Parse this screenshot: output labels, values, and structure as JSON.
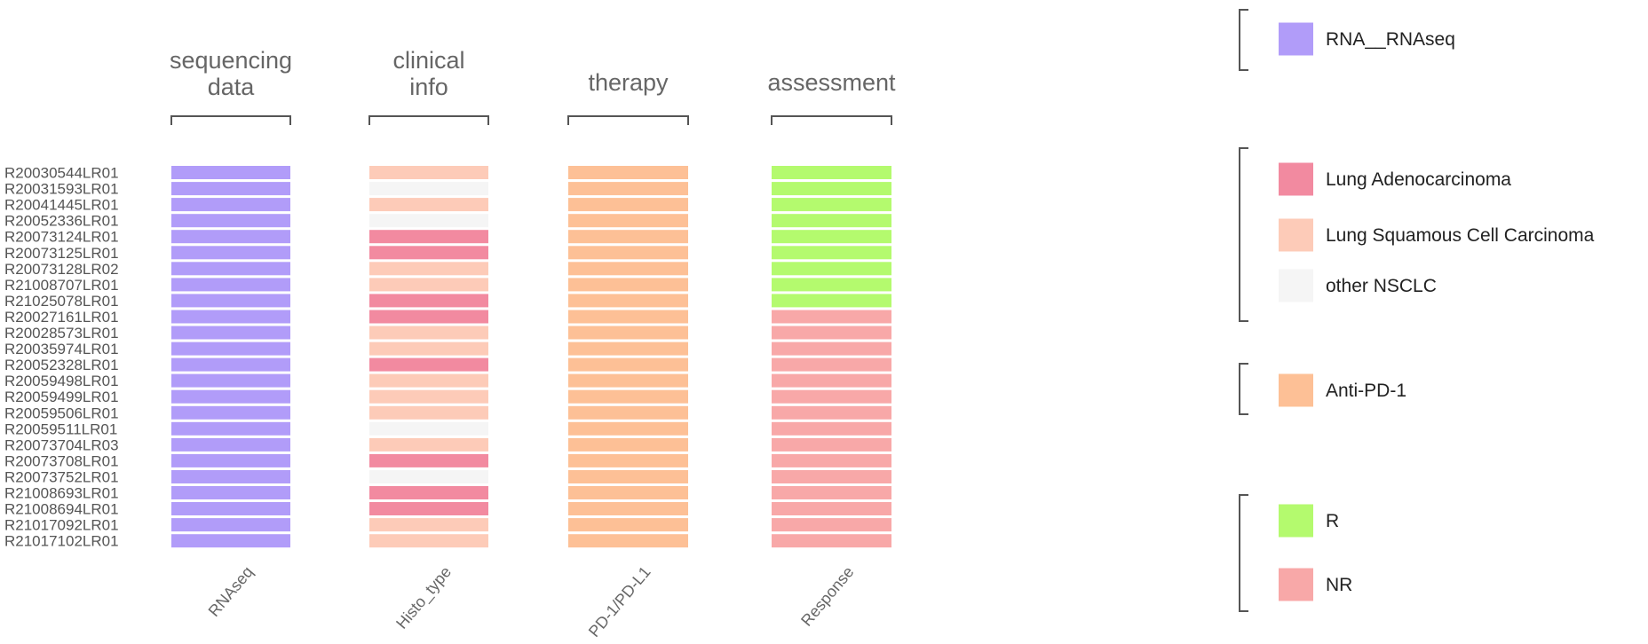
{
  "chart_data": {
    "type": "heatmap",
    "row_labels": [
      "R20030544LR01",
      "R20031593LR01",
      "R20041445LR01",
      "R20052336LR01",
      "R20073124LR01",
      "R20073125LR01",
      "R20073128LR02",
      "R21008707LR01",
      "R21025078LR01",
      "R20027161LR01",
      "R20028573LR01",
      "R20035974LR01",
      "R20052328LR01",
      "R20059498LR01",
      "R20059499LR01",
      "R20059506LR01",
      "R20059511LR01",
      "R20073704LR03",
      "R20073708LR01",
      "R20073752LR01",
      "R21008693LR01",
      "R21008694LR01",
      "R21017092LR01",
      "R21017102LR01"
    ],
    "groups": [
      {
        "header_lines": [
          "sequencing",
          "data"
        ],
        "column": "RNAseq"
      },
      {
        "header_lines": [
          "clinical",
          "info"
        ],
        "column": "Histo_type"
      },
      {
        "header_lines": [
          "therapy"
        ],
        "column": "PD-1/PD-L1"
      },
      {
        "header_lines": [
          "assessment"
        ],
        "column": "Response"
      }
    ],
    "cells": {
      "RNAseq": [
        "RNA__RNAseq",
        "RNA__RNAseq",
        "RNA__RNAseq",
        "RNA__RNAseq",
        "RNA__RNAseq",
        "RNA__RNAseq",
        "RNA__RNAseq",
        "RNA__RNAseq",
        "RNA__RNAseq",
        "RNA__RNAseq",
        "RNA__RNAseq",
        "RNA__RNAseq",
        "RNA__RNAseq",
        "RNA__RNAseq",
        "RNA__RNAseq",
        "RNA__RNAseq",
        "RNA__RNAseq",
        "RNA__RNAseq",
        "RNA__RNAseq",
        "RNA__RNAseq",
        "RNA__RNAseq",
        "RNA__RNAseq",
        "RNA__RNAseq",
        "RNA__RNAseq"
      ],
      "Histo_type": [
        "Lung Squamous Cell Carcinoma",
        "other NSCLC",
        "Lung Squamous Cell Carcinoma",
        "other NSCLC",
        "Lung Adenocarcinoma",
        "Lung Adenocarcinoma",
        "Lung Squamous Cell Carcinoma",
        "Lung Squamous Cell Carcinoma",
        "Lung Adenocarcinoma",
        "Lung Adenocarcinoma",
        "Lung Squamous Cell Carcinoma",
        "Lung Squamous Cell Carcinoma",
        "Lung Adenocarcinoma",
        "Lung Squamous Cell Carcinoma",
        "Lung Squamous Cell Carcinoma",
        "Lung Squamous Cell Carcinoma",
        "other NSCLC",
        "Lung Squamous Cell Carcinoma",
        "Lung Adenocarcinoma",
        "other NSCLC",
        "Lung Adenocarcinoma",
        "Lung Adenocarcinoma",
        "Lung Squamous Cell Carcinoma",
        "Lung Squamous Cell Carcinoma"
      ],
      "PD-1/PD-L1": [
        "Anti-PD-1",
        "Anti-PD-1",
        "Anti-PD-1",
        "Anti-PD-1",
        "Anti-PD-1",
        "Anti-PD-1",
        "Anti-PD-1",
        "Anti-PD-1",
        "Anti-PD-1",
        "Anti-PD-1",
        "Anti-PD-1",
        "Anti-PD-1",
        "Anti-PD-1",
        "Anti-PD-1",
        "Anti-PD-1",
        "Anti-PD-1",
        "Anti-PD-1",
        "Anti-PD-1",
        "Anti-PD-1",
        "Anti-PD-1",
        "Anti-PD-1",
        "Anti-PD-1",
        "Anti-PD-1",
        "Anti-PD-1"
      ],
      "Response": [
        "R",
        "R",
        "R",
        "R",
        "R",
        "R",
        "R",
        "R",
        "R",
        "NR",
        "NR",
        "NR",
        "NR",
        "NR",
        "NR",
        "NR",
        "NR",
        "NR",
        "NR",
        "NR",
        "NR",
        "NR",
        "NR",
        "NR"
      ]
    },
    "legend_position": "right",
    "legend_groups": [
      {
        "items": [
          {
            "label": "RNA__RNAseq",
            "color": "#b19cf9"
          }
        ]
      },
      {
        "items": [
          {
            "label": "Lung Adenocarcinoma",
            "color": "#f28aa0"
          },
          {
            "label": "Lung Squamous Cell Carcinoma",
            "color": "#fdcbb8"
          },
          {
            "label": "other NSCLC",
            "color": "#f5f5f5"
          }
        ]
      },
      {
        "items": [
          {
            "label": "Anti-PD-1",
            "color": "#fdc096"
          }
        ]
      },
      {
        "items": [
          {
            "label": "R",
            "color": "#b4fa6e"
          },
          {
            "label": "NR",
            "color": "#f8a8a8"
          }
        ]
      }
    ],
    "colors": {
      "header_text": "#666666",
      "row_label_text": "#555555",
      "bracket": "#555555",
      "legend_text": "#222222"
    }
  }
}
